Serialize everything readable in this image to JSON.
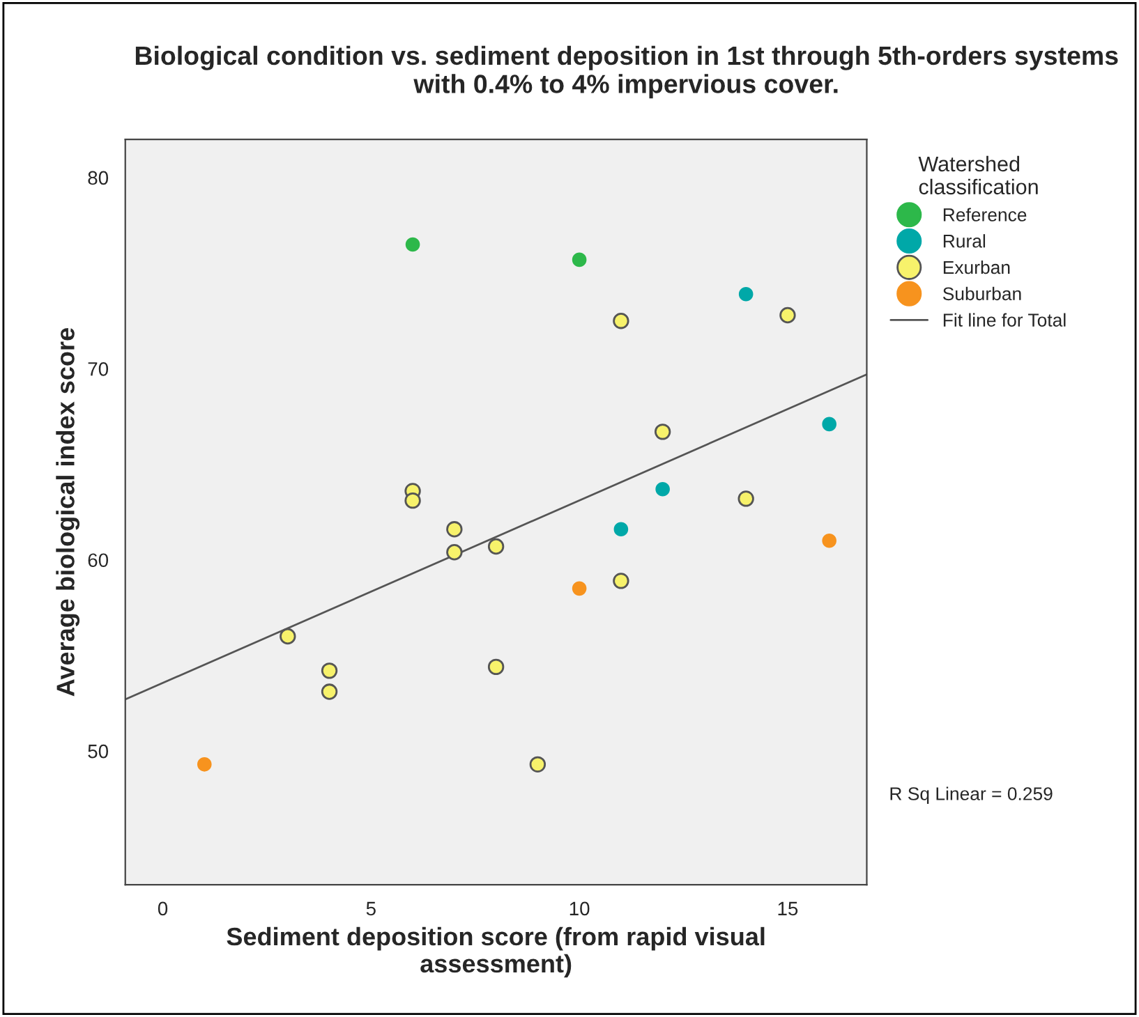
{
  "chart_data": {
    "type": "scatter",
    "title": "Biological condition vs. sediment deposition in 1st through 5th-orders systems\nwith 0.4% to 4% impervious cover.",
    "xlabel": "Sediment deposition score (from rapid visual\nassessment)",
    "ylabel": "Average biological index score",
    "legend_title": "Watershed\nclassification",
    "series": [
      {
        "name": "Reference",
        "color": "#2db84a",
        "x": [
          6,
          10
        ],
        "values": [
          76.5,
          75.7
        ]
      },
      {
        "name": "Rural",
        "color": "#00a8a8",
        "x": [
          14,
          16,
          12,
          11
        ],
        "values": [
          73.9,
          67.1,
          63.7,
          61.6
        ]
      },
      {
        "name": "Exurban",
        "color": "#f7f26b",
        "x": [
          11,
          15,
          12,
          14,
          6,
          6,
          7,
          7,
          8,
          11,
          3,
          4,
          4,
          8,
          9
        ],
        "values": [
          72.5,
          72.8,
          66.7,
          63.2,
          63.6,
          63.1,
          61.6,
          60.4,
          60.7,
          58.9,
          56.0,
          54.2,
          53.1,
          54.4,
          49.3
        ]
      },
      {
        "name": "Suburban",
        "color": "#f7931e",
        "x": [
          10,
          16,
          1
        ],
        "values": [
          58.5,
          61.0,
          49.3
        ]
      },
      {
        "name": "Fit line for Total",
        "type": "line",
        "marker": "none",
        "color": "#555555",
        "x": [
          -0.9,
          16.9
        ],
        "values": [
          52.7,
          69.7
        ]
      }
    ],
    "marker": "circle",
    "legend": "top right",
    "grid": false,
    "xlim": [
      -0.9,
      16.9
    ],
    "ylim": [
      43,
      82
    ],
    "xticks": [
      0,
      5,
      10,
      15
    ],
    "yticks": [
      50,
      60,
      70,
      80
    ],
    "annotations": [
      "R Sq Linear = 0.259"
    ]
  }
}
